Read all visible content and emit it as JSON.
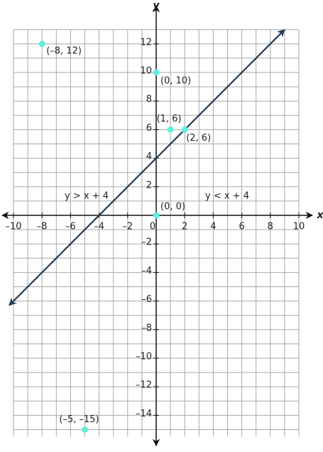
{
  "chart_data": {
    "type": "scatter",
    "x_label": "x",
    "y_label": "y",
    "xlim": [
      -10,
      10
    ],
    "ylim": [
      -15.5,
      13
    ],
    "xticks": [
      {
        "value": -10,
        "label": "–10"
      },
      {
        "value": -8,
        "label": "–8"
      },
      {
        "value": -6,
        "label": "–6"
      },
      {
        "value": -4,
        "label": "–4"
      },
      {
        "value": -2,
        "label": "–2"
      },
      0,
      2,
      4,
      6,
      8,
      10
    ],
    "yticks": [
      {
        "value": -14,
        "label": "–14"
      },
      {
        "value": -12,
        "label": "–12"
      },
      {
        "value": -10,
        "label": "–10"
      },
      {
        "value": -8,
        "label": "–8"
      },
      {
        "value": -6,
        "label": "–6"
      },
      {
        "value": -4,
        "label": "–4"
      },
      {
        "value": -2,
        "label": "–2"
      },
      2,
      4,
      6,
      8,
      10,
      12
    ],
    "minor_xticks": [
      -9,
      -7,
      -5,
      -3,
      -1,
      1,
      3,
      5,
      7,
      9
    ],
    "minor_yticks": [
      -15,
      -13,
      -11,
      -9,
      -7,
      -5,
      -3,
      -1,
      1,
      3,
      5,
      7,
      9,
      11,
      13
    ],
    "grid": true,
    "line": {
      "color": "#1f3b57",
      "x": [
        -10.3,
        9
      ],
      "values": [
        -6.3,
        13
      ]
    },
    "points": {
      "color": "#5ff0dc",
      "x": [
        -8,
        0,
        1,
        2,
        0,
        -5
      ],
      "values": [
        12,
        10,
        6,
        6,
        0,
        -15
      ],
      "value_labels": [
        "(–8, 12)",
        "(0, 10)",
        "(1, 6)",
        "(2, 6)",
        "(0, 0)",
        "(–5, –15)"
      ]
    },
    "annotations": [
      "y > x + 4",
      "y < x + 4"
    ]
  }
}
